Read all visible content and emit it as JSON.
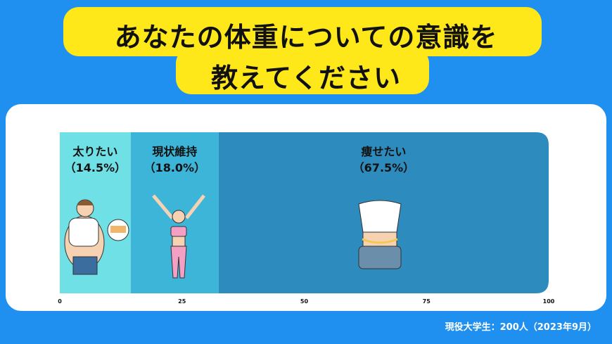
{
  "title": {
    "line1": "あなたの体重についての意識を",
    "line2": "教えてください"
  },
  "chart_data": {
    "type": "bar",
    "orientation": "horizontal-stacked",
    "categories": [
      "太りたい",
      "現状維持",
      "痩せたい"
    ],
    "values": [
      14.5,
      18.0,
      67.5
    ],
    "labels": [
      "（14.5%）",
      "（18.0%）",
      "（67.5%）"
    ],
    "colors": [
      "#6fe0e6",
      "#3cb5d8",
      "#2e8bbd"
    ],
    "xlim": [
      0,
      100
    ],
    "xticks": [
      "0",
      "25",
      "50",
      "75",
      "100"
    ],
    "grid": false
  },
  "footnote": "現役大学生：200人（2023年9月）"
}
